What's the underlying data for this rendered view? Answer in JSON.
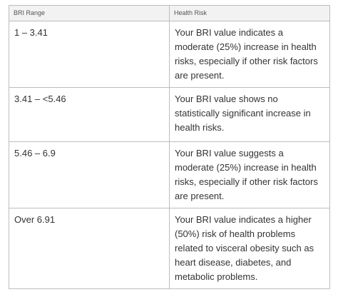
{
  "table": {
    "headers": {
      "range": "BRI Range",
      "risk": "Health Risk"
    },
    "rows": [
      {
        "range": "1 – 3.41",
        "risk": "Your BRI value indicates a moderate (25%) increase in health risks, especially if other risk factors are present."
      },
      {
        "range": "3.41 – <5.46",
        "risk": "Your BRI value shows no statistically significant increase in health risks."
      },
      {
        "range": "5.46 – 6.9",
        "risk": "Your BRI value suggests a moderate (25%) increase in health risks, especially if other risk factors are present."
      },
      {
        "range": "Over 6.91",
        "risk": "Your BRI value indicates a higher (50%) risk of health problems related to visceral obesity such as heart disease, diabetes, and metabolic problems."
      }
    ]
  }
}
